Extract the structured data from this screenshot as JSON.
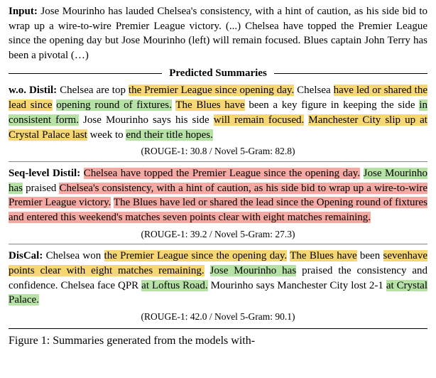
{
  "input": {
    "label": "Input:",
    "text": " Jose Mourinho has lauded Chelsea's consistency, with a hint of caution, as his side bid to wrap up a wire-to-wire Premier League victory. (...) Chelsea have topped the Premier League since the opening day but Jose Mourinho (left) will remain focused. Blues captain John Terry has been a pivotal (…)"
  },
  "header": "Predicted Summaries",
  "wo": {
    "label": "w.o. Distil:",
    "fragments": [
      {
        "t": " Chelsea are top ",
        "c": ""
      },
      {
        "t": "the Premier League since opening day.",
        "c": "hl-y"
      },
      {
        "t": " Chelsea ",
        "c": ""
      },
      {
        "t": "have led or shared the lead since",
        "c": "hl-y"
      },
      {
        "t": " ",
        "c": ""
      },
      {
        "t": "opening round of fixtures.",
        "c": "hl-g"
      },
      {
        "t": " ",
        "c": ""
      },
      {
        "t": "The Blues have",
        "c": "hl-y"
      },
      {
        "t": " been a key figure in keeping the",
        "c": ""
      },
      {
        "t": " side ",
        "c": ""
      },
      {
        "t": "in consistent form.",
        "c": "hl-g"
      },
      {
        "t": " Jose Mourinho says his side ",
        "c": ""
      },
      {
        "t": "will remain focused.",
        "c": "hl-y"
      },
      {
        "t": " ",
        "c": ""
      },
      {
        "t": "Manchester City slip up at Crystal Palace last",
        "c": "hl-y"
      },
      {
        "t": " week to ",
        "c": ""
      },
      {
        "t": "end their title hopes.",
        "c": "hl-g"
      }
    ],
    "metrics": "(ROUGE-1: 30.8 / Novel 5-Gram: 82.8)"
  },
  "seq": {
    "label": "Seq-level Distil:",
    "fragments": [
      {
        "t": " ",
        "c": ""
      },
      {
        "t": "Chelsea have topped the Premier League since the opening day.",
        "c": "hl-r"
      },
      {
        "t": " ",
        "c": ""
      },
      {
        "t": "Jose Mourinho has",
        "c": "hl-g"
      },
      {
        "t": "  praised  ",
        "c": ""
      },
      {
        "t": "Chelsea's consistency, with a hint of caution, as his side bid to wrap up a wire-to-wire Premier League victory.",
        "c": "hl-r"
      },
      {
        "t": "   ",
        "c": ""
      },
      {
        "t": "The Blues have led or shared the lead since the Opening round of fixtures and entered this weekend's matches seven points clear with eight matches remaining.",
        "c": "hl-r"
      }
    ],
    "metrics": "(ROUGE-1: 39.2 / Novel 5-Gram: 27.3)"
  },
  "discal": {
    "label": "DisCal:",
    "fragments": [
      {
        "t": " Chelsea won ",
        "c": ""
      },
      {
        "t": "the Premier League since the opening day.",
        "c": "hl-y"
      },
      {
        "t": " ",
        "c": ""
      },
      {
        "t": "The Blues have",
        "c": "hl-y"
      },
      {
        "t": " been ",
        "c": ""
      },
      {
        "t": "sevenhave points clear with eight matches remaining.",
        "c": "hl-y"
      },
      {
        "t": " ",
        "c": ""
      },
      {
        "t": "Jose Mourinho has",
        "c": "hl-g"
      },
      {
        "t": " praised the consistency and confidence. Chelsea face QPR ",
        "c": ""
      },
      {
        "t": "at Loftus Road.",
        "c": "hl-g"
      },
      {
        "t": " Mourinho says Manchester City lost 2-1 ",
        "c": ""
      },
      {
        "t": "at Crystal Palace.",
        "c": "hl-g"
      }
    ],
    "metrics": "(ROUGE-1: 42.0 / Novel 5-Gram: 90.1)"
  },
  "caption": "Figure 1: Summaries generated from the models with-",
  "colors": {
    "yellow": "#f7d774",
    "green": "#b6e3a5",
    "red": "#f4a9a3"
  }
}
